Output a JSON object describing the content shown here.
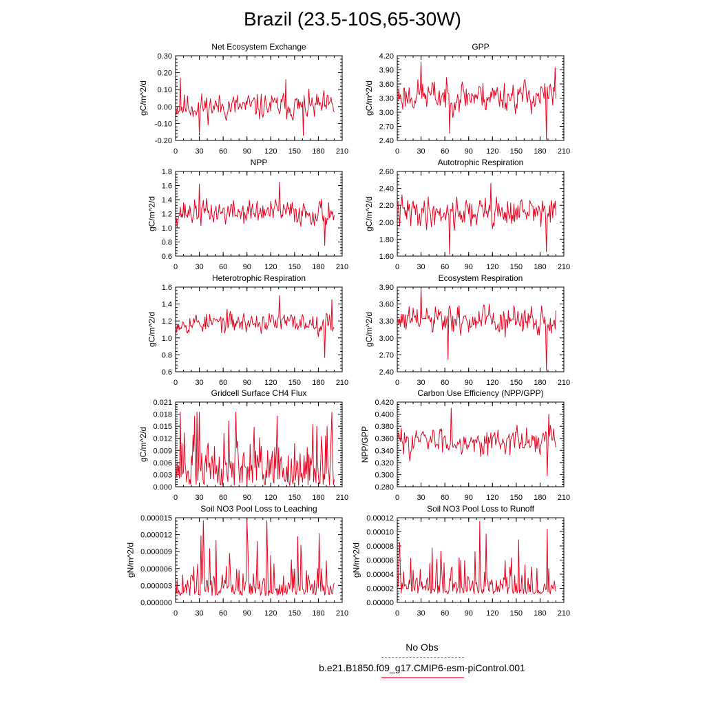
{
  "page_title": "Brazil (23.5-10S,65-30W)",
  "legend": [
    {
      "label": "No Obs",
      "color": "#3a3ad8",
      "style": "dashed"
    },
    {
      "label": "b.e21.B1850.f09_g17.CMIP6-esm-piControl.001",
      "color": "#e8001c",
      "style": "solid"
    }
  ],
  "chart_data": [
    {
      "type": "line",
      "title": "Net Ecosystem Exchange",
      "ylabel": "gC/m^2/d",
      "xlabel": "",
      "xlim": [
        0,
        210
      ],
      "xticks": [
        "0",
        "30",
        "60",
        "90",
        "120",
        "150",
        "180",
        "210"
      ],
      "ylim": [
        -0.2,
        0.3
      ],
      "yticks": [
        "-0.20",
        "-0.10",
        "0.00",
        "0.10",
        "0.20",
        "0.30"
      ],
      "series": [
        {
          "color": "#e8001c",
          "mean": 0.0,
          "amp": 0.065,
          "min": -0.17,
          "max": 0.17,
          "seed": 11,
          "peaks": [
            [
              29,
              -0.17
            ],
            [
              138,
              0.16
            ],
            [
              160,
              -0.17
            ],
            [
              5,
              0.17
            ]
          ]
        }
      ]
    },
    {
      "type": "line",
      "title": "GPP",
      "ylabel": "gC/m^2/d",
      "xlabel": "",
      "xlim": [
        0,
        210
      ],
      "xticks": [
        "0",
        "30",
        "60",
        "90",
        "120",
        "150",
        "180",
        "210"
      ],
      "ylim": [
        2.4,
        4.2
      ],
      "yticks": [
        "2.40",
        "2.70",
        "3.00",
        "3.30",
        "3.60",
        "3.90",
        "4.20"
      ],
      "series": [
        {
          "color": "#e8001c",
          "mean": 3.35,
          "amp": 0.28,
          "min": 2.42,
          "max": 4.07,
          "seed": 23,
          "peaks": [
            [
              29,
              4.07
            ],
            [
              187,
              2.42
            ],
            [
              65,
              2.55
            ],
            [
              198,
              3.95
            ]
          ]
        }
      ]
    },
    {
      "type": "line",
      "title": "NPP",
      "ylabel": "gC/m^2/d",
      "xlabel": "",
      "xlim": [
        0,
        210
      ],
      "xticks": [
        "0",
        "30",
        "60",
        "90",
        "120",
        "150",
        "180",
        "210"
      ],
      "ylim": [
        0.6,
        1.8
      ],
      "yticks": [
        "0.6",
        "0.8",
        "1.0",
        "1.2",
        "1.4",
        "1.6",
        "1.8"
      ],
      "series": [
        {
          "color": "#e8001c",
          "mean": 1.22,
          "amp": 0.15,
          "min": 0.75,
          "max": 1.65,
          "seed": 37,
          "peaks": [
            [
              130,
              1.65
            ],
            [
              187,
              0.75
            ],
            [
              29,
              1.62
            ]
          ]
        }
      ]
    },
    {
      "type": "line",
      "title": "Autotrophic Respiration",
      "ylabel": "gC/m^2/d",
      "xlabel": "",
      "xlim": [
        0,
        210
      ],
      "xticks": [
        "0",
        "30",
        "60",
        "90",
        "120",
        "150",
        "180",
        "210"
      ],
      "ylim": [
        1.6,
        2.6
      ],
      "yticks": [
        "1.60",
        "1.80",
        "2.00",
        "2.20",
        "2.40",
        "2.60"
      ],
      "series": [
        {
          "color": "#e8001c",
          "mean": 2.12,
          "amp": 0.15,
          "min": 1.62,
          "max": 2.47,
          "seed": 41,
          "peaks": [
            [
              117,
              2.46
            ],
            [
              65,
              1.62
            ],
            [
              187,
              1.65
            ]
          ]
        }
      ]
    },
    {
      "type": "line",
      "title": "Heterotrophic Respiration",
      "ylabel": "gC/m^2/d",
      "xlabel": "",
      "xlim": [
        0,
        210
      ],
      "xticks": [
        "0",
        "30",
        "60",
        "90",
        "120",
        "150",
        "180",
        "210"
      ],
      "ylim": [
        0.6,
        1.6
      ],
      "yticks": [
        "0.6",
        "0.8",
        "1.0",
        "1.2",
        "1.4",
        "1.6"
      ],
      "series": [
        {
          "color": "#e8001c",
          "mean": 1.18,
          "amp": 0.1,
          "min": 0.77,
          "max": 1.5,
          "seed": 53,
          "peaks": [
            [
              130,
              1.5
            ],
            [
              187,
              0.77
            ],
            [
              196,
              1.45
            ]
          ]
        }
      ]
    },
    {
      "type": "line",
      "title": "Ecosystem Respiration",
      "ylabel": "gC/m^2/d",
      "xlabel": "",
      "xlim": [
        0,
        210
      ],
      "xticks": [
        "0",
        "30",
        "60",
        "90",
        "120",
        "150",
        "180",
        "210"
      ],
      "ylim": [
        2.4,
        3.9
      ],
      "yticks": [
        "2.40",
        "2.70",
        "3.00",
        "3.30",
        "3.60",
        "3.90"
      ],
      "series": [
        {
          "color": "#e8001c",
          "mean": 3.3,
          "amp": 0.22,
          "min": 2.42,
          "max": 3.88,
          "seed": 61,
          "peaks": [
            [
              29,
              3.88
            ],
            [
              187,
              2.42
            ],
            [
              63,
              2.62
            ]
          ]
        }
      ]
    },
    {
      "type": "line",
      "title": "Gridcell Surface CH4 Flux",
      "ylabel": "gC/m^2/d",
      "xlabel": "",
      "xlim": [
        0,
        210
      ],
      "xticks": [
        "0",
        "30",
        "60",
        "90",
        "120",
        "150",
        "180",
        "210"
      ],
      "ylim": [
        0.0,
        0.021
      ],
      "yticks": [
        "0.000",
        "0.003",
        "0.006",
        "0.009",
        "0.012",
        "0.015",
        "0.018",
        "0.021"
      ],
      "series": [
        {
          "color": "#e8001c",
          "mean": 0.0055,
          "amp": 0.005,
          "min": 0.0002,
          "max": 0.0185,
          "seed": 71,
          "spiky": true,
          "peaks": [
            [
              29,
              0.0185
            ],
            [
              23,
              0.0175
            ],
            [
              127,
              0.0175
            ]
          ]
        }
      ]
    },
    {
      "type": "line",
      "title": "Carbon Use Efficiency (NPP/GPP)",
      "ylabel": "NPP/GPP",
      "xlabel": "",
      "xlim": [
        0,
        210
      ],
      "xticks": [
        "0",
        "30",
        "60",
        "90",
        "120",
        "150",
        "180",
        "210"
      ],
      "ylim": [
        0.28,
        0.42
      ],
      "yticks": [
        "0.280",
        "0.300",
        "0.320",
        "0.340",
        "0.360",
        "0.380",
        "0.400",
        "0.420"
      ],
      "series": [
        {
          "color": "#e8001c",
          "mean": 0.356,
          "amp": 0.018,
          "min": 0.298,
          "max": 0.41,
          "seed": 83,
          "peaks": [
            [
              67,
              0.41
            ],
            [
              188,
              0.298
            ],
            [
              190,
              0.4
            ]
          ]
        }
      ]
    },
    {
      "type": "line",
      "title": "Soil NO3 Pool Loss to Leaching",
      "ylabel": "gN/m^2/d",
      "xlabel": "",
      "xlim": [
        0,
        210
      ],
      "xticks": [
        "0",
        "30",
        "60",
        "90",
        "120",
        "150",
        "180",
        "210"
      ],
      "ylim": [
        0.0,
        1.5e-05
      ],
      "yticks": [
        "0.000000",
        "0.000003",
        "0.000006",
        "0.000009",
        "0.000012",
        "0.000015"
      ],
      "series": [
        {
          "color": "#e8001c",
          "mean": 3.2e-06,
          "amp": 1.2e-06,
          "min": 1.2e-06,
          "max": 1.45e-05,
          "seed": 97,
          "spiky": true,
          "peaks": [
            [
              114,
              1.45e-05
            ],
            [
              102,
              1.08e-05
            ],
            [
              67,
              8.7e-06
            ]
          ]
        }
      ]
    },
    {
      "type": "line",
      "title": "Soil NO3 Pool Loss to Runoff",
      "ylabel": "gN/m^2/d",
      "xlabel": "",
      "xlim": [
        0,
        210
      ],
      "xticks": [
        "0",
        "30",
        "60",
        "90",
        "120",
        "150",
        "180",
        "210"
      ],
      "ylim": [
        0.0,
        0.00012
      ],
      "yticks": [
        "0.00000",
        "0.00002",
        "0.00004",
        "0.00006",
        "0.00008",
        "0.00010",
        "0.00012"
      ],
      "series": [
        {
          "color": "#e8001c",
          "mean": 2.5e-05,
          "amp": 1e-05,
          "min": 1.2e-05,
          "max": 0.000115,
          "seed": 109,
          "spiky": true,
          "peaks": [
            [
              103,
              0.000115
            ],
            [
              111,
              9.7e-05
            ],
            [
              188,
              0.000104
            ],
            [
              2,
              8.5e-05
            ]
          ]
        }
      ]
    }
  ]
}
